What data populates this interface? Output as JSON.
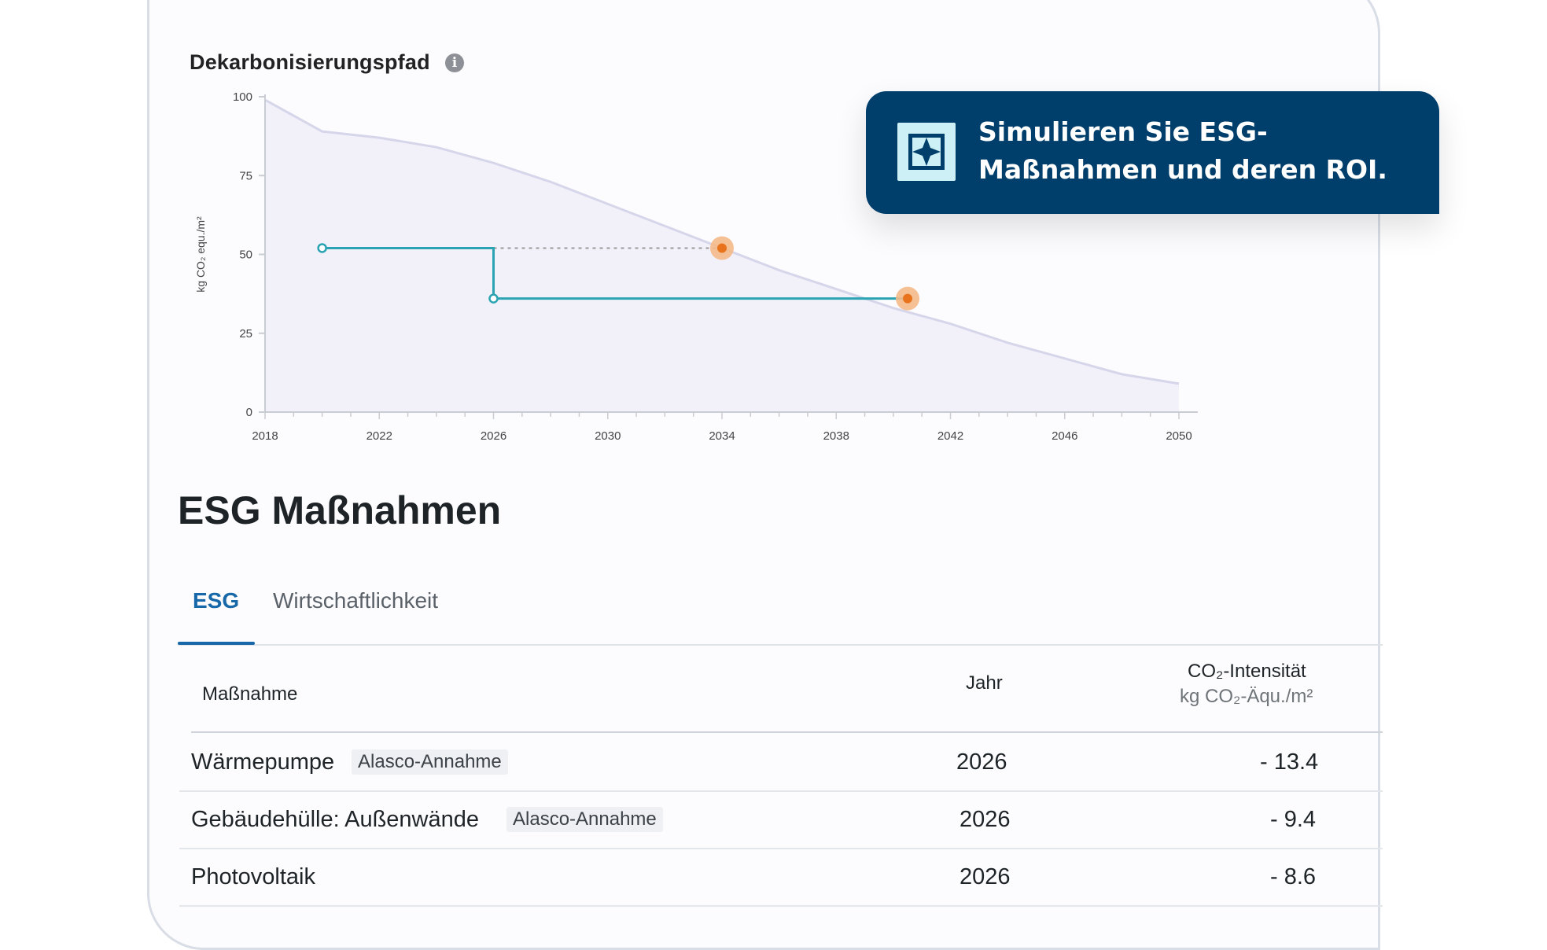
{
  "chart": {
    "title": "Dekarbonisierungspfad",
    "info_icon": "info-icon"
  },
  "chart_data": {
    "type": "area",
    "title": "Dekarbonisierungspfad",
    "ylabel": "kg CO₂ equ./m²",
    "xlabel": "",
    "xlim": [
      2018,
      2050
    ],
    "ylim": [
      0,
      100
    ],
    "x_ticks": [
      2018,
      2022,
      2026,
      2030,
      2034,
      2038,
      2042,
      2046,
      2050
    ],
    "y_ticks": [
      0,
      25,
      50,
      75,
      100
    ],
    "grid": false,
    "series": [
      {
        "type": "area",
        "color": "#d6d6ea",
        "x": [
          2018,
          2020,
          2022,
          2024,
          2026,
          2028,
          2030,
          2032,
          2034,
          2036,
          2038,
          2040,
          2042,
          2044,
          2046,
          2048,
          2050
        ],
        "y": [
          99,
          89,
          87,
          84,
          79,
          73,
          66,
          59,
          52,
          45,
          39,
          33,
          28,
          22,
          17,
          12,
          9
        ]
      },
      {
        "type": "step",
        "color": "#2aa3b2",
        "x": [
          2020,
          2026,
          2026,
          2040.5
        ],
        "y": [
          52,
          52,
          36,
          36
        ]
      },
      {
        "type": "dashed",
        "color": "#999999",
        "x": [
          2026,
          2034
        ],
        "y": [
          52,
          52
        ]
      },
      {
        "type": "markers",
        "color": "#e8731c",
        "x": [
          2034,
          2040.5
        ],
        "y": [
          52,
          36
        ]
      },
      {
        "type": "open-markers",
        "color": "#2aa3b2",
        "x": [
          2020,
          2026
        ],
        "y": [
          52,
          36
        ]
      }
    ]
  },
  "callout": {
    "text": "Simulieren Sie ESG-Maßnahmen und deren ROI.",
    "logo_icon": "alasco-logo-icon"
  },
  "section": {
    "title": "ESG Maßnahmen"
  },
  "tabs": [
    {
      "label": "ESG",
      "active": true
    },
    {
      "label": "Wirtschaftlichkeit",
      "active": false
    }
  ],
  "table": {
    "headers": {
      "measure": "Maßnahme",
      "year": "Jahr",
      "intensity": "CO₂-Intensität",
      "intensity_unit": "kg CO₂-Äqu./m²"
    },
    "rows": [
      {
        "measure": "Wärmepumpe",
        "badge": "Alasco-Annahme",
        "year": "2026",
        "intensity": "- 13.4"
      },
      {
        "measure": "Gebäudehülle: Außenwände",
        "badge": "Alasco-Annahme",
        "year": "2026",
        "intensity": "- 9.4"
      },
      {
        "measure": "Photovoltaik",
        "badge": "",
        "year": "2026",
        "intensity": "- 8.6"
      }
    ]
  }
}
